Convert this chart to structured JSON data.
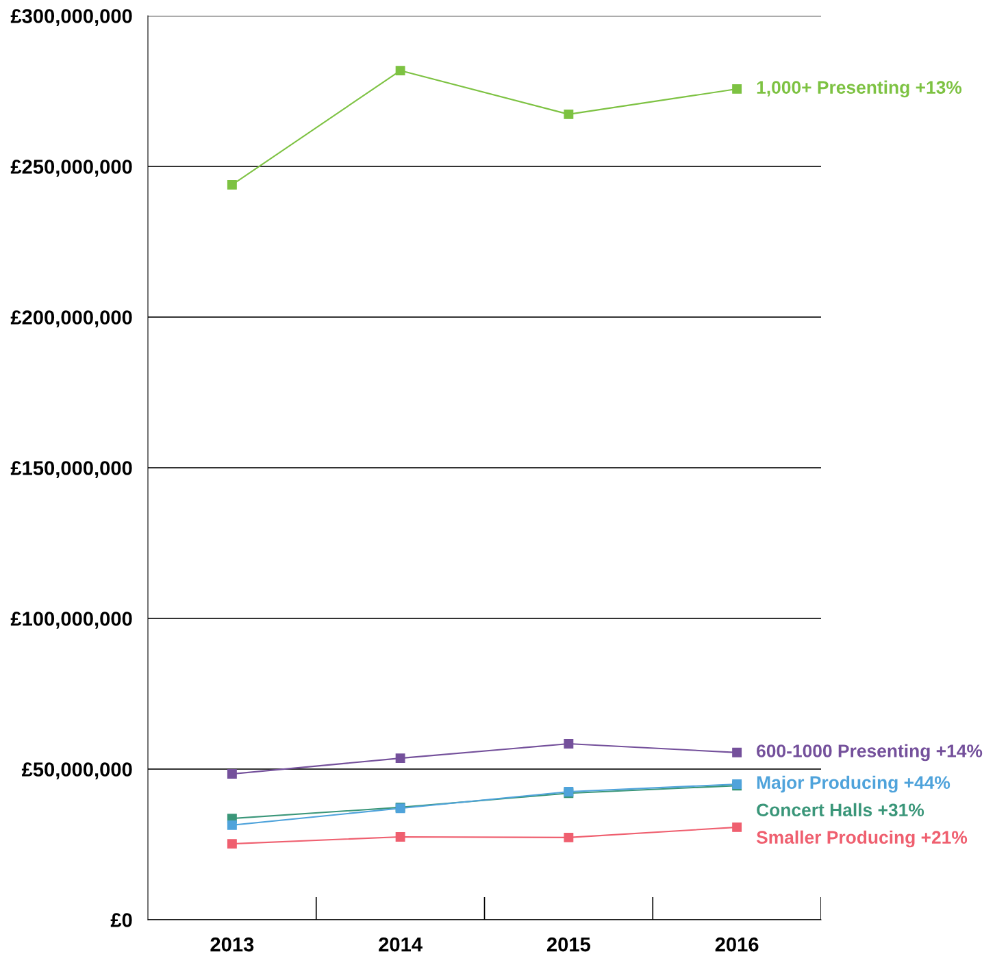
{
  "chart_data": {
    "type": "line",
    "categories": [
      "2013",
      "2014",
      "2015",
      "2016"
    ],
    "series": [
      {
        "name": "1,000+ Presenting +13%",
        "color": "#7dc242",
        "values": [
          243900000.0,
          281800000.0,
          267300000.0,
          275700000.0
        ]
      },
      {
        "name": "600-1000 Presenting +14%",
        "color": "#74509b",
        "values": [
          48400000.0,
          53600000.0,
          58400000.0,
          55500000.0
        ]
      },
      {
        "name": "Major Producing +44%",
        "color": "#4fa3db",
        "values": [
          31400000.0,
          37000000.0,
          42500000.0,
          45000000.0
        ]
      },
      {
        "name": "Concert Halls +31%",
        "color": "#3a9679",
        "values": [
          33600000.0,
          37300000.0,
          42000000.0,
          44500000.0
        ]
      },
      {
        "name": "Smaller Producing +21%",
        "color": "#ef5f6f",
        "values": [
          25200000.0,
          27500000.0,
          27300000.0,
          30700000.0
        ]
      }
    ],
    "ylim": [
      0,
      300000000
    ],
    "yticks": [
      {
        "value": 0,
        "label": "£0"
      },
      {
        "value": 50000000,
        "label": "£50,000,000"
      },
      {
        "value": 100000000,
        "label": "£100,000,000"
      },
      {
        "value": 150000000,
        "label": "£150,000,000"
      },
      {
        "value": 200000000,
        "label": "£200,000,000"
      },
      {
        "value": 250000000,
        "label": "£250,000,000"
      },
      {
        "value": 300000000,
        "label": "£300,000,000"
      }
    ],
    "grid": "y",
    "marker": "square",
    "line_style": "solid",
    "legend": false
  }
}
